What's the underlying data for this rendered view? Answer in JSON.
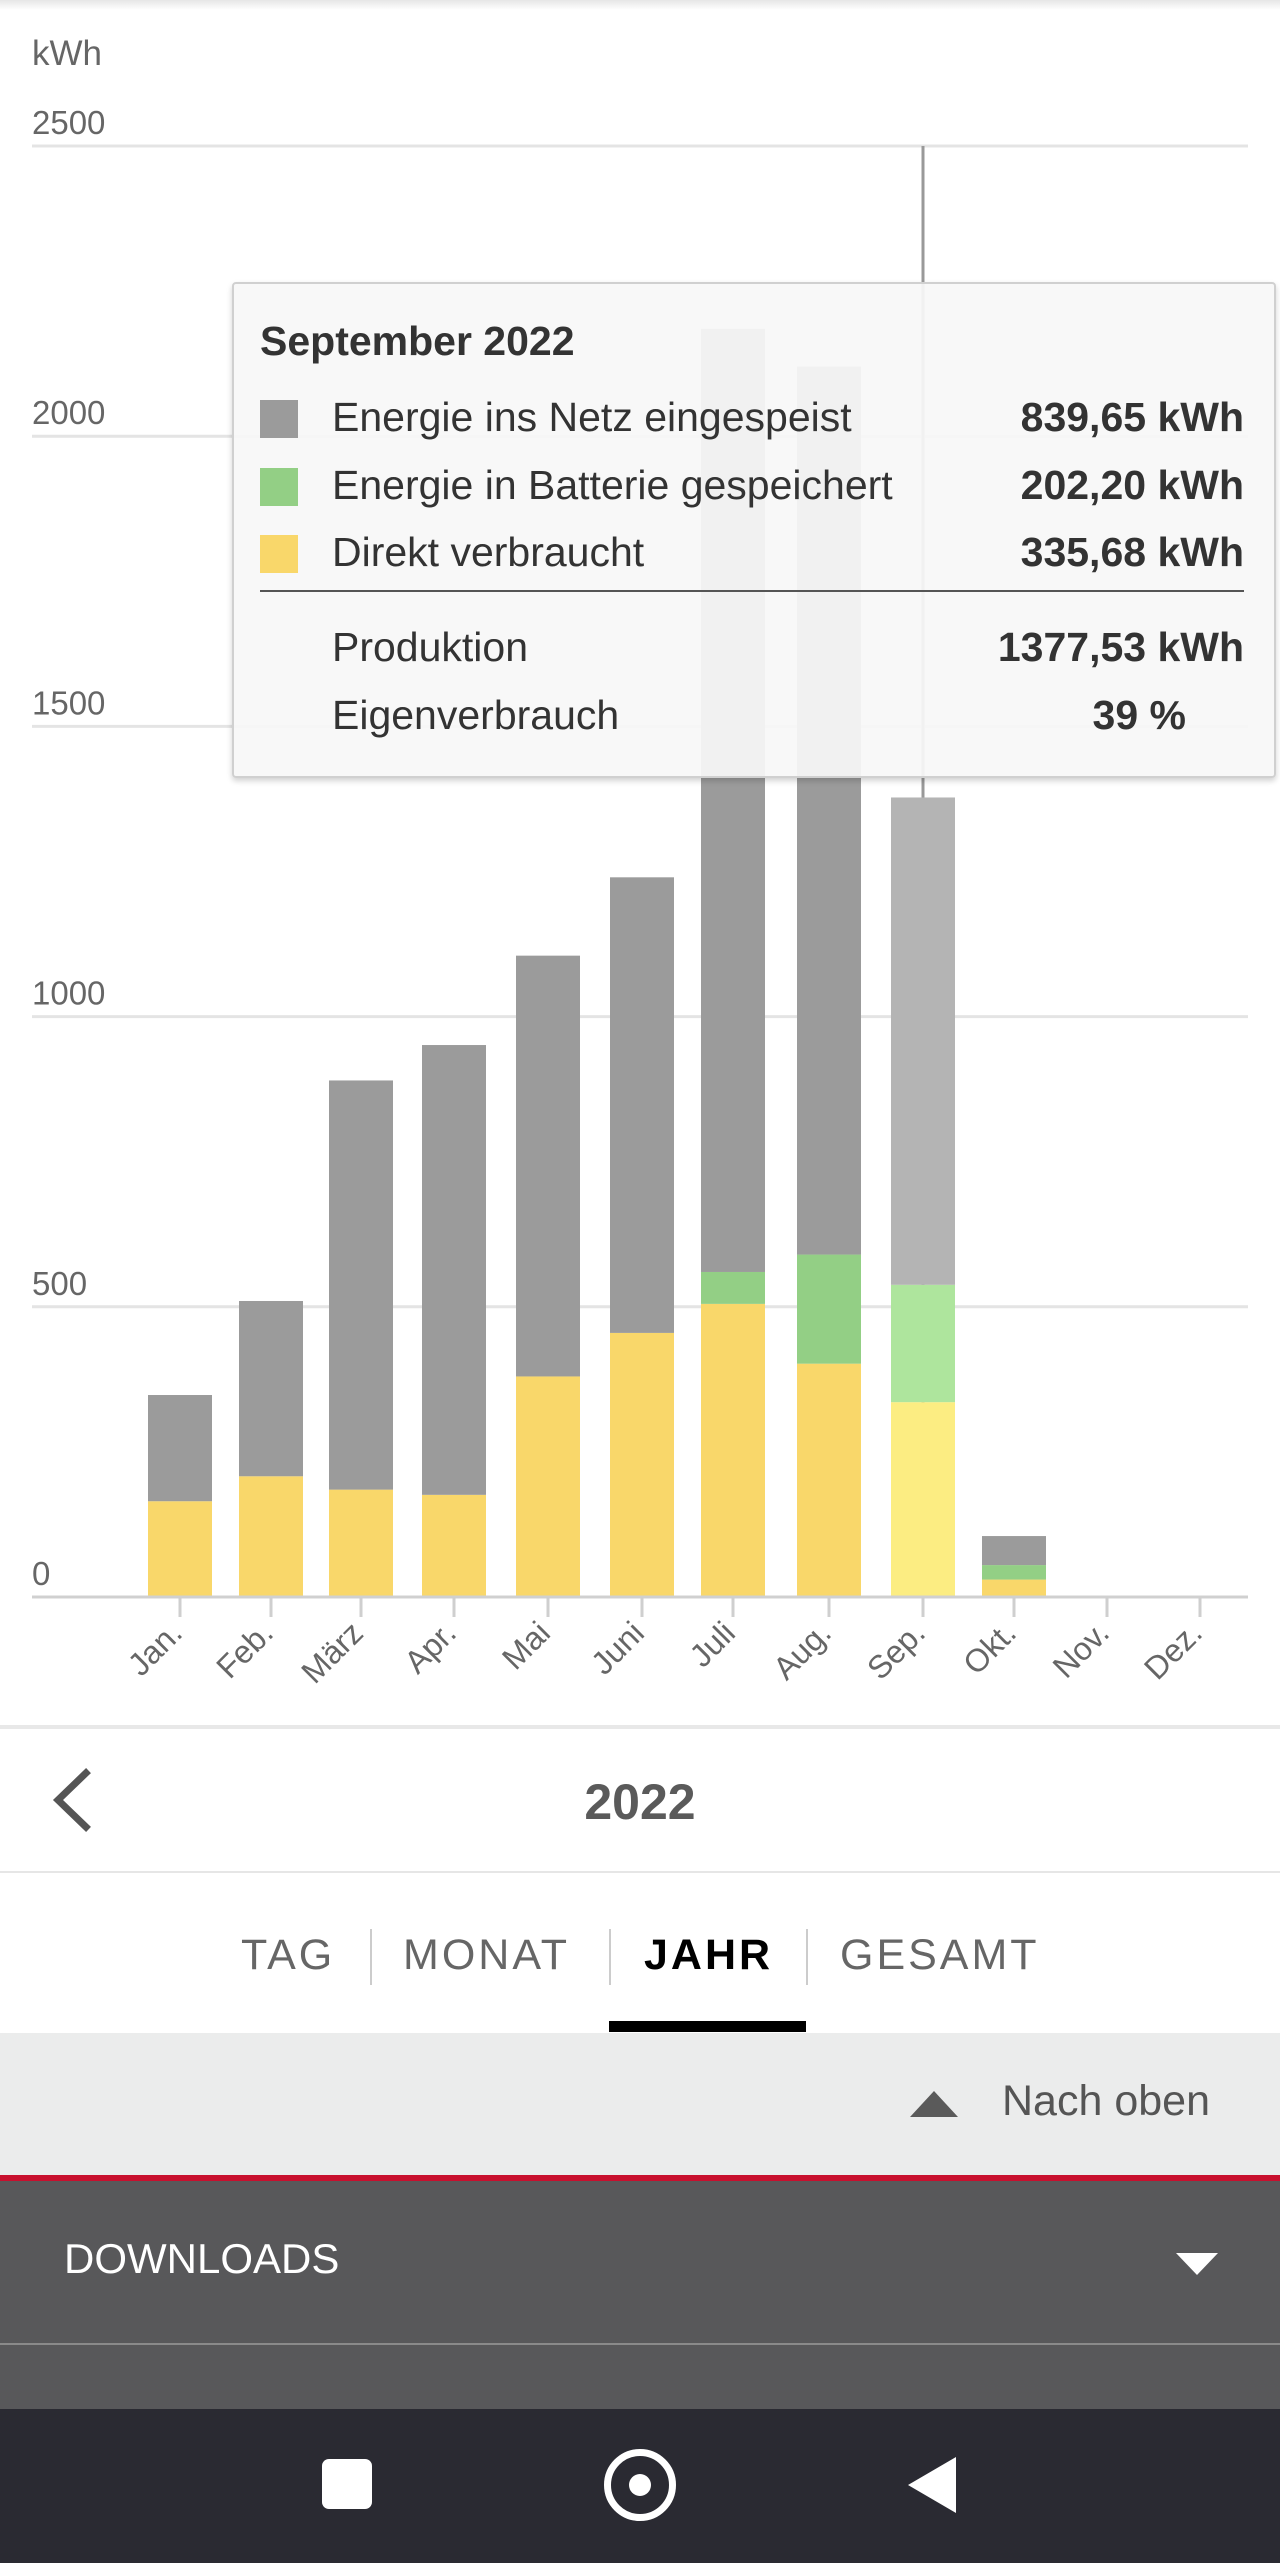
{
  "chart_data": {
    "type": "bar",
    "stacked": true,
    "ylabel": "kWh",
    "ylim": [
      0,
      2500
    ],
    "yticks": [
      0,
      500,
      1000,
      1500,
      2000,
      2500
    ],
    "categories": [
      "Jan.",
      "Feb.",
      "März",
      "Apr.",
      "Mai",
      "Juni",
      "Juli",
      "Aug.",
      "Sep.",
      "Okt.",
      "Nov.",
      "Dez."
    ],
    "series": [
      {
        "name": "Direkt verbraucht",
        "color": "#f9d76a",
        "highlight_color": "#fced82",
        "values": [
          165,
          208,
          185,
          176,
          380,
          455,
          505,
          402,
          335.68,
          30,
          0,
          0
        ]
      },
      {
        "name": "Energie in Batterie gespeichert",
        "color": "#93cf85",
        "highlight_color": "#aee59d",
        "values": [
          0,
          0,
          0,
          0,
          0,
          0,
          55,
          188,
          202.2,
          25,
          0,
          0
        ]
      },
      {
        "name": "Energie ins Netz eingespeist",
        "color": "#9b9b9b",
        "highlight_color": "#b4b4b4",
        "values": [
          183,
          302,
          705,
          775,
          725,
          785,
          1625,
          1530,
          839.65,
          50,
          0,
          0
        ]
      }
    ],
    "highlighted_index": 8,
    "grid": true,
    "legend": "tooltip"
  },
  "tooltip": {
    "title": "September 2022",
    "rows": [
      {
        "label": "Energie ins Netz eingespeist",
        "value": "839,65",
        "unit": "kWh",
        "color": "#9b9b9b"
      },
      {
        "label": "Energie in Batterie gespeichert",
        "value": "202,20",
        "unit": "kWh",
        "color": "#93cf85"
      },
      {
        "label": "Direkt verbraucht",
        "value": "335,68",
        "unit": "kWh",
        "color": "#f9d76a"
      }
    ],
    "produktion_label": "Produktion",
    "produktion_value": "1377,53 kWh",
    "eigenverbrauch_label": "Eigenverbrauch",
    "eigenverbrauch_value": "39 %"
  },
  "period": {
    "year": "2022"
  },
  "tabs": [
    "TAG",
    "MONAT",
    "JAHR",
    "GESAMT"
  ],
  "active_tab": "JAHR",
  "back_to_top": "Nach oben",
  "downloads": "DOWNLOADS",
  "icons": {
    "prev": "chevron-left-icon",
    "up": "triangle-up-icon",
    "expand": "triangle-down-icon",
    "sys_recent": "square-icon",
    "sys_home": "circle-icon",
    "sys_back": "triangle-left-icon"
  }
}
